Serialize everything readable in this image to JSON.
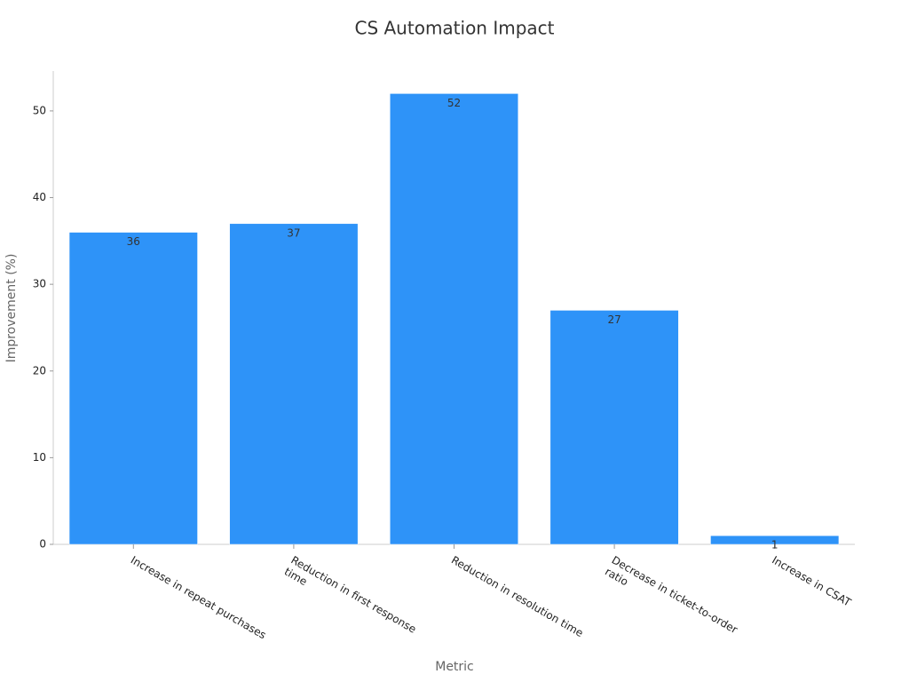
{
  "chart_data": {
    "type": "bar",
    "title": "CS Automation Impact",
    "x_label": "Metric",
    "y_label": "Improvement (%)",
    "categories": [
      "Increase in repeat purchases",
      "Reduction in first response time",
      "Reduction in resolution time",
      "Decrease in ticket-to-order ratio",
      "Increase in CSAT"
    ],
    "values": [
      36,
      37,
      52,
      27,
      1
    ],
    "color": "#2e93f8",
    "ylim": [
      0,
      54.6
    ],
    "yticks": [
      0,
      10,
      20,
      30,
      40,
      50
    ],
    "grid": false
  }
}
